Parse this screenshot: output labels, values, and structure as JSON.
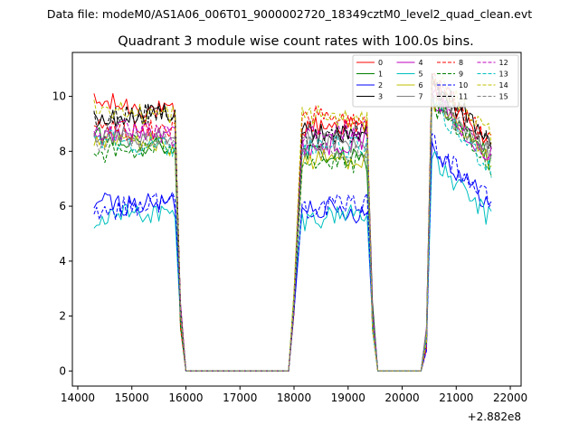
{
  "chart_data": {
    "type": "line",
    "suptitle": "Data file: modeM0/AS1A06_006T01_9000002720_18349cztM0_level2_quad_clean.evt",
    "title": "Quadrant 3 module wise count rates with 100.0s bins.",
    "xlabel": "",
    "ylabel": "",
    "x_offset_label": "+2.882e8",
    "xlim": [
      13900,
      22200
    ],
    "ylim": [
      -0.55,
      11.6
    ],
    "xticks": [
      14000,
      15000,
      16000,
      17000,
      18000,
      19000,
      20000,
      21000,
      22000
    ],
    "yticks": [
      0,
      2,
      4,
      6,
      8,
      10
    ],
    "legend": {
      "location": "top-right",
      "ncol": 4,
      "entries": [
        "0",
        "1",
        "2",
        "3",
        "4",
        "5",
        "6",
        "7",
        "8",
        "9",
        "10",
        "11",
        "12",
        "13",
        "14",
        "15"
      ]
    },
    "segments": [
      {
        "x_start": 14300,
        "x_end": 15800
      },
      {
        "x_start": 18150,
        "x_end": 19350
      },
      {
        "x_start": 20550,
        "x_end": 21650
      }
    ],
    "drop_points": [
      [
        15800,
        8.2
      ],
      [
        15900,
        2.0
      ],
      [
        16000,
        0.0
      ],
      [
        17900,
        0.0
      ],
      [
        18000,
        2.5
      ],
      [
        19350,
        8.2
      ],
      [
        19450,
        2.0
      ],
      [
        19550,
        0.0
      ],
      [
        20350,
        0.0
      ],
      [
        20450,
        1.5
      ]
    ],
    "series": [
      {
        "name": "0",
        "color": "#ff0000",
        "dash": false,
        "means": [
          9.5,
          8.7,
          9.0
        ]
      },
      {
        "name": "1",
        "color": "#008000",
        "dash": false,
        "means": [
          8.4,
          7.7,
          8.5
        ]
      },
      {
        "name": "2",
        "color": "#0000ff",
        "dash": false,
        "means": [
          6.3,
          6.0,
          6.8
        ]
      },
      {
        "name": "3",
        "color": "#000000",
        "dash": false,
        "means": [
          9.4,
          8.9,
          9.2
        ]
      },
      {
        "name": "4",
        "color": "#bf00bf",
        "dash": false,
        "means": [
          8.6,
          8.4,
          8.6
        ]
      },
      {
        "name": "5",
        "color": "#00bfbf",
        "dash": false,
        "means": [
          5.5,
          5.6,
          6.3
        ]
      },
      {
        "name": "6",
        "color": "#bfbf00",
        "dash": false,
        "means": [
          8.2,
          7.5,
          8.4
        ]
      },
      {
        "name": "7",
        "color": "#808080",
        "dash": false,
        "means": [
          8.5,
          8.1,
          8.6
        ]
      },
      {
        "name": "8",
        "color": "#ff0000",
        "dash": true,
        "means": [
          9.0,
          9.2,
          9.2
        ]
      },
      {
        "name": "9",
        "color": "#008000",
        "dash": true,
        "means": [
          8.2,
          7.8,
          8.3
        ]
      },
      {
        "name": "10",
        "color": "#0000ff",
        "dash": true,
        "means": [
          6.0,
          6.2,
          6.9
        ]
      },
      {
        "name": "11",
        "color": "#000000",
        "dash": true,
        "means": [
          9.1,
          8.6,
          9.0
        ]
      },
      {
        "name": "12",
        "color": "#bf00bf",
        "dash": true,
        "means": [
          8.5,
          8.5,
          8.6
        ]
      },
      {
        "name": "13",
        "color": "#00bfbf",
        "dash": true,
        "means": [
          8.3,
          8.0,
          8.2
        ]
      },
      {
        "name": "14",
        "color": "#bfbf00",
        "dash": true,
        "means": [
          9.6,
          9.2,
          9.4
        ]
      },
      {
        "name": "15",
        "color": "#808080",
        "dash": true,
        "means": [
          8.6,
          8.2,
          8.7
        ]
      }
    ]
  }
}
